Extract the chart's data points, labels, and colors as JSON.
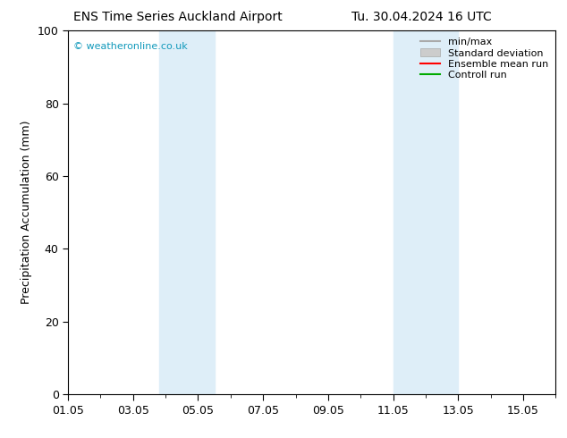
{
  "title_left": "ENS Time Series Auckland Airport",
  "title_right": "Tu. 30.04.2024 16 UTC",
  "ylabel": "Precipitation Accumulation (mm)",
  "watermark": "© weatheronline.co.uk",
  "watermark_color": "#1199bb",
  "ylim": [
    0,
    100
  ],
  "xlim_start": 1,
  "xlim_end": 16,
  "xtick_labels": [
    "01.05",
    "03.05",
    "05.05",
    "07.05",
    "09.05",
    "11.05",
    "13.05",
    "15.05"
  ],
  "xtick_positions": [
    1,
    3,
    5,
    7,
    9,
    11,
    13,
    15
  ],
  "ytick_positions": [
    0,
    20,
    40,
    60,
    80,
    100
  ],
  "shaded_bands": [
    {
      "x_start": 3.8,
      "x_end": 4.5,
      "color": "#deeef8"
    },
    {
      "x_start": 4.5,
      "x_end": 5.5,
      "color": "#deeef8"
    },
    {
      "x_start": 11.0,
      "x_end": 11.8,
      "color": "#deeef8"
    },
    {
      "x_start": 11.8,
      "x_end": 13.0,
      "color": "#deeef8"
    }
  ],
  "background_color": "#ffffff",
  "legend_items": [
    {
      "label": "min/max",
      "color": "#aaaaaa",
      "lw": 1.5,
      "style": "-",
      "type": "line"
    },
    {
      "label": "Standard deviation",
      "color": "#cccccc",
      "lw": 8,
      "style": "-",
      "type": "patch"
    },
    {
      "label": "Ensemble mean run",
      "color": "#ff0000",
      "lw": 1.5,
      "style": "-",
      "type": "line"
    },
    {
      "label": "Controll run",
      "color": "#00aa00",
      "lw": 1.5,
      "style": "-",
      "type": "line"
    }
  ],
  "title_fontsize": 10,
  "axis_fontsize": 9,
  "legend_fontsize": 8
}
